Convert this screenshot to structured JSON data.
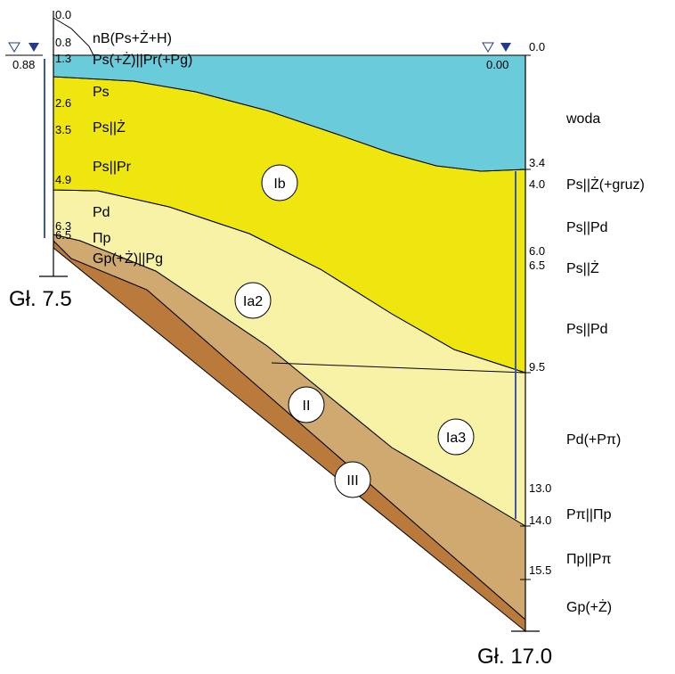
{
  "colors": {
    "water": "#6acbdb",
    "layer_ib": "#f0e60f",
    "layer_ia": "#f7f2a6",
    "layer_ii": "#cfa96f",
    "layer_iii": "#b97a3c",
    "water_marker": "#243a8c",
    "borehole_line": "#3b5aa6"
  },
  "left_borehole": {
    "water_level": "0.88",
    "final_depth": "Gł. 7.5",
    "depths": [
      "0.0",
      "0.8",
      "1.3",
      "2.6",
      "3.5",
      "4.9",
      "6.3",
      "6.5"
    ],
    "layers": [
      "nB(Ps+Ż+H)",
      "Ps(+Ż)||Pr(+Pg)",
      "Ps",
      "Ps||Ż",
      "Ps||Pr",
      "Pd",
      "Πp",
      "Gp(+Ż)||Pg"
    ]
  },
  "right_borehole": {
    "water_level": "0.00",
    "final_depth": "Gł. 17.0",
    "depths": [
      "0.0",
      "3.4",
      "4.0",
      "6.0",
      "6.5",
      "9.5",
      "13.0",
      "14.0",
      "15.5"
    ],
    "layers": [
      "woda",
      "Ps||Ż(+gruz)",
      "Ps||Pd",
      "Ps||Ż",
      "Ps||Pd",
      "Pd(+Pπ)",
      "Pπ||Πp",
      "Πp||Pπ",
      "Gp(+Ż)"
    ]
  },
  "geo_layers": [
    "Ib",
    "Ia2",
    "Ia3",
    "II",
    "III"
  ]
}
